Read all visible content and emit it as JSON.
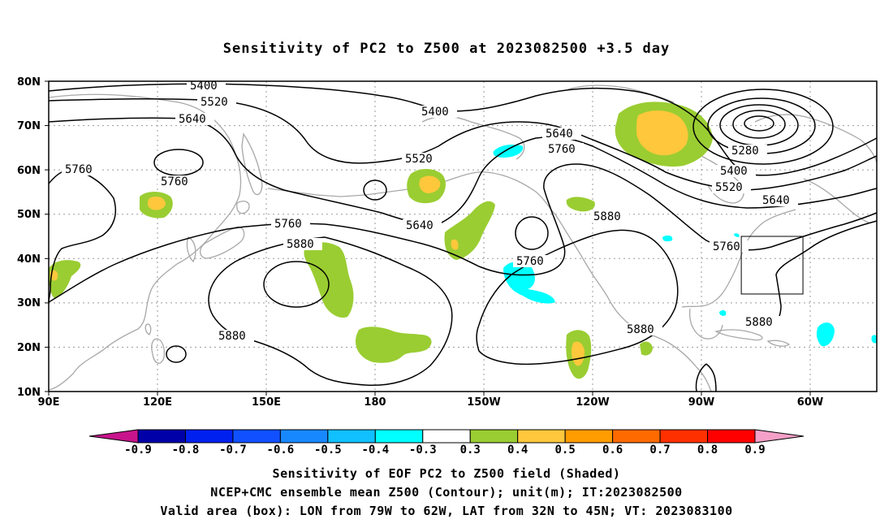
{
  "title": "Sensitivity of PC2 to Z500 at 2023082500 +3.5 day",
  "lat_labels": [
    "80N",
    "70N",
    "60N",
    "50N",
    "40N",
    "30N",
    "20N",
    "10N"
  ],
  "lon_labels": [
    "90E",
    "120E",
    "150E",
    "180",
    "150W",
    "120W",
    "90W",
    "60W"
  ],
  "contour_labels": {
    "c5400": "5400",
    "c5520": "5520",
    "c5640": "5640",
    "c5760": "5760",
    "c5880": "5880",
    "c5280": "5280"
  },
  "colorbar": {
    "labels": [
      "-0.9",
      "-0.8",
      "-0.7",
      "-0.6",
      "-0.5",
      "-0.4",
      "-0.3",
      "0.3",
      "0.4",
      "0.5",
      "0.6",
      "0.7",
      "0.8",
      "0.9"
    ],
    "colors": [
      "#0000a8",
      "#0020f0",
      "#1050ff",
      "#1888ff",
      "#10c0ff",
      "#00ffff",
      "#ffffff",
      "#9acd32",
      "#ffc83c",
      "#ff9c00",
      "#ff6a00",
      "#ff3000",
      "#ff0000"
    ],
    "low_end_color": "#c8148c",
    "high_end_color": "#f5a0c8"
  },
  "shading_colors": {
    "s03": "#9acd32",
    "s04": "#ffc83c",
    "neg04": "#00ffff"
  },
  "valid_box": {
    "lon_min": -79,
    "lon_max": -62,
    "lat_min": 32,
    "lat_max": 45
  },
  "captions": {
    "line1": "Sensitivity of EOF PC2 to Z500 field (Shaded)",
    "line2": "NCEP+CMC ensemble mean Z500 (Contour); unit(m); IT:2023082500",
    "line3": "Valid area (box): LON from 79W to 62W, LAT from 32N to 45N; VT: 2023083100"
  }
}
